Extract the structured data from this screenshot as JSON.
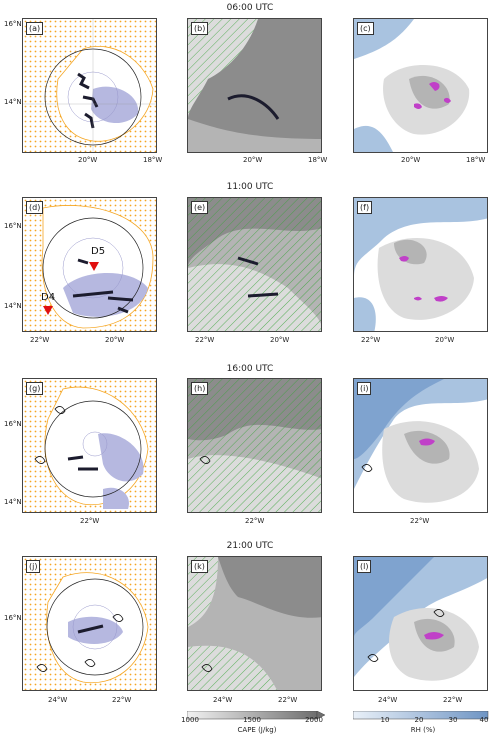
{
  "rows": [
    {
      "time": "06:00 UTC",
      "panels": [
        "(a)",
        "(b)",
        "(c)"
      ],
      "lat_ticks": [
        "16°N",
        "14°N"
      ],
      "lon_ticks_a": [
        "20°W",
        "18°W"
      ],
      "lon_ticks_b": [
        "20°W",
        "18°W"
      ],
      "lon_ticks_c": [
        "20°W",
        "18°W"
      ]
    },
    {
      "time": "11:00 UTC",
      "panels": [
        "(d)",
        "(e)",
        "(f)"
      ],
      "lat_ticks": [
        "16°N",
        "14°N"
      ],
      "lon_ticks_a": [
        "22°W",
        "20°W"
      ],
      "lon_ticks_b": [
        "22°W",
        "20°W"
      ],
      "lon_ticks_c": [
        "22°W",
        "20°W"
      ],
      "markers": [
        "D5",
        "D4"
      ]
    },
    {
      "time": "16:00 UTC",
      "panels": [
        "(g)",
        "(h)",
        "(i)"
      ],
      "lat_ticks": [
        "16°N",
        "14°N"
      ],
      "lon_ticks_a": [
        "22°W"
      ],
      "lon_ticks_b": [
        "22°W"
      ],
      "lon_ticks_c": [
        "22°W"
      ]
    },
    {
      "time": "21:00 UTC",
      "panels": [
        "(j)",
        "(k)",
        "(l)"
      ],
      "lat_ticks": [
        "16°N"
      ],
      "lon_ticks_a": [
        "24°W",
        "22°W"
      ],
      "lon_ticks_b": [
        "24°W",
        "22°W"
      ],
      "lon_ticks_c": [
        "24°W",
        "22°W"
      ]
    }
  ],
  "colorbars": {
    "cape": {
      "ticks": [
        "1000",
        "1500",
        "2000"
      ],
      "label": "CAPE (J/kg)"
    },
    "rh": {
      "ticks": [
        "10",
        "20",
        "30",
        "40"
      ],
      "label": "RH (%)"
    }
  },
  "colors": {
    "orange": "#f5a623",
    "lavender": "#b6b8e0",
    "dark_cell": "#1c1c2e",
    "green_hatch": "#3aa33a",
    "gray_dark": "#8c8c8c",
    "gray_mid": "#b4b4b4",
    "gray_light": "#dcdcdc",
    "blue_rh": "#a9c3e0",
    "magenta": "#c040c8",
    "marker_red": "#e01010"
  }
}
